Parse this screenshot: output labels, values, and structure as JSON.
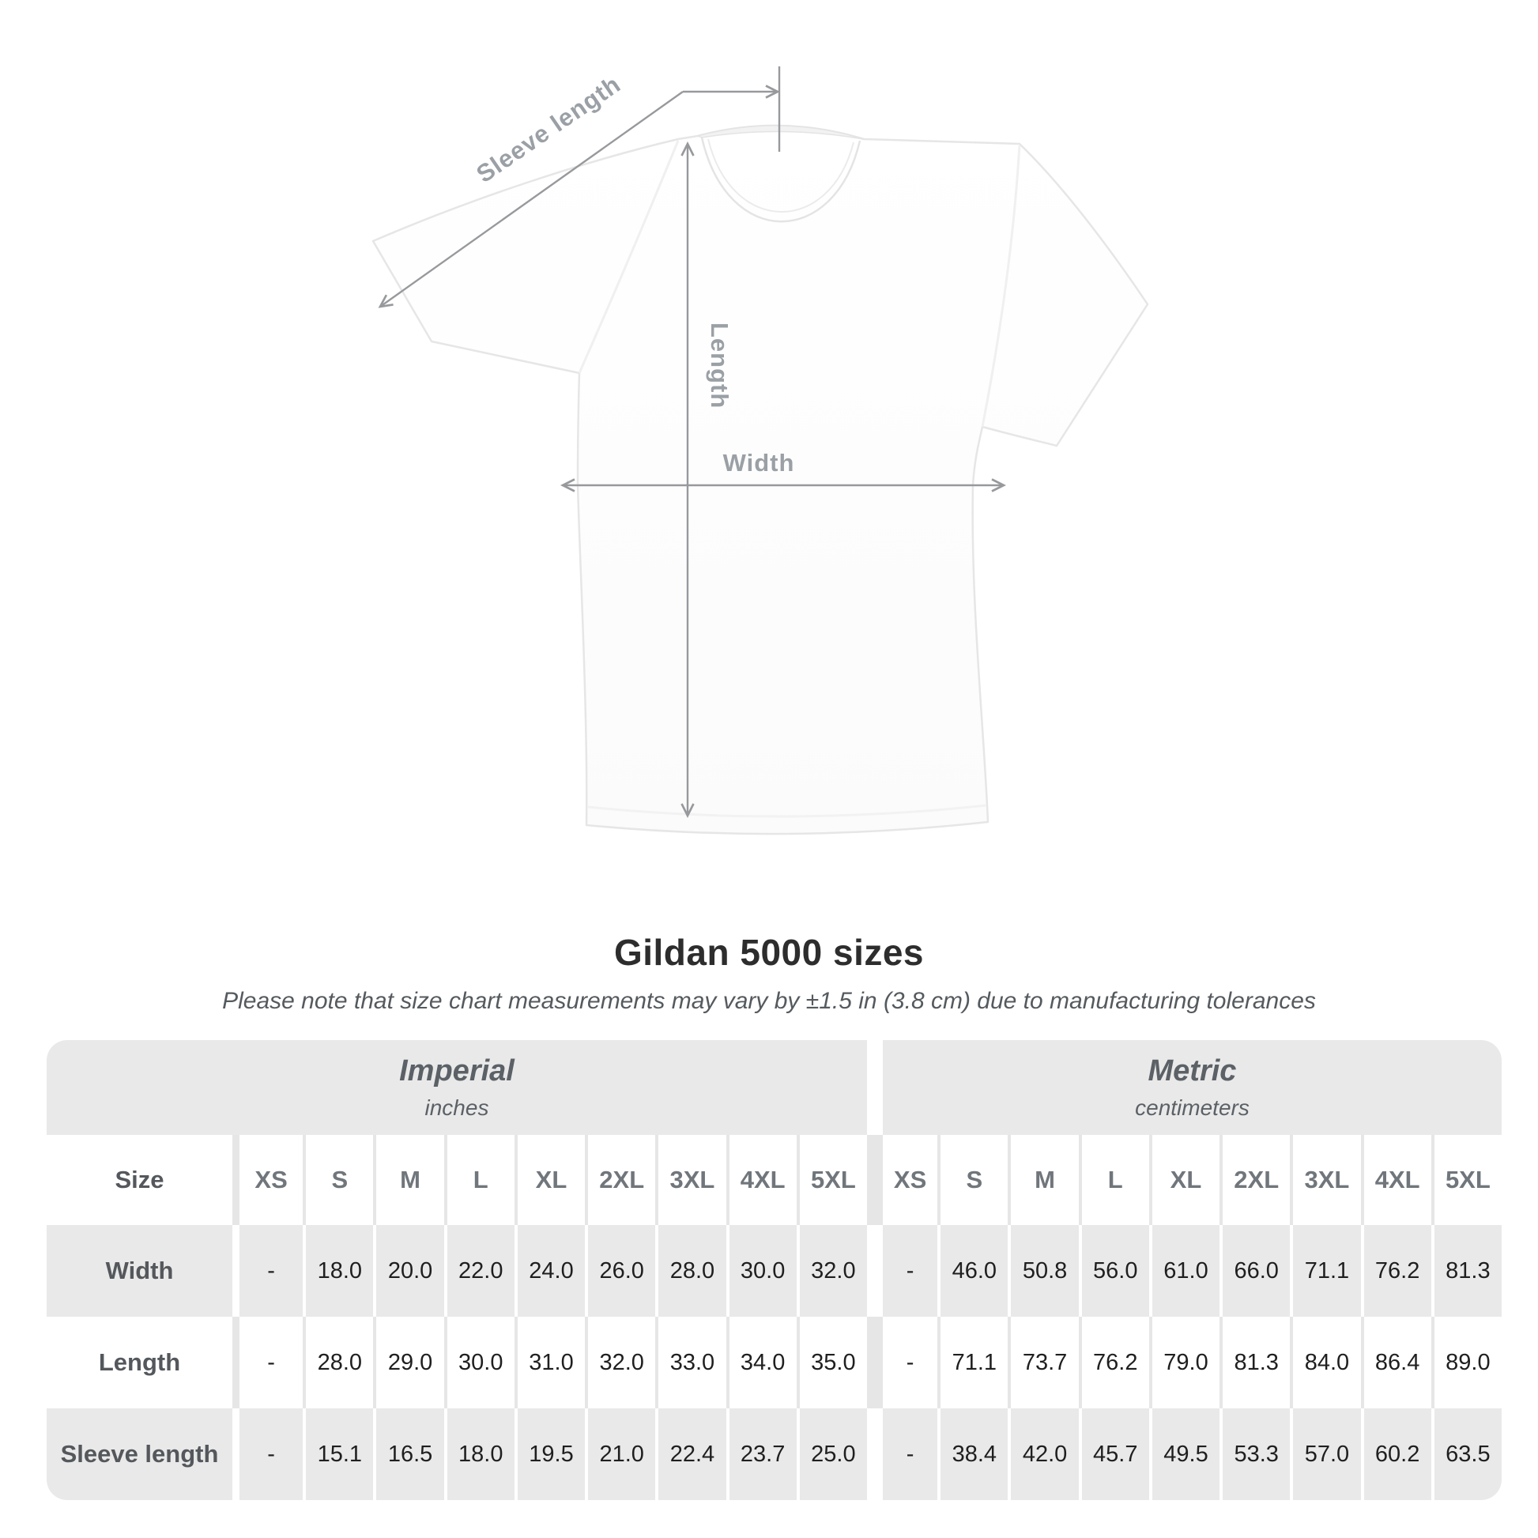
{
  "diagram": {
    "labels": {
      "sleeve_length": "Sleeve length",
      "length": "Length",
      "width": "Width"
    }
  },
  "header": {
    "title": "Gildan 5000 sizes",
    "subtitle": "Please note that size chart measurements may vary by ±1.5 in (3.8 cm) due to manufacturing tolerances"
  },
  "table": {
    "sections": [
      {
        "label": "Imperial",
        "unit": "inches"
      },
      {
        "label": "Metric",
        "unit": "centimeters"
      }
    ],
    "size_col_header": "Size",
    "size_headers": [
      "XS",
      "S",
      "M",
      "L",
      "XL",
      "2XL",
      "3XL",
      "4XL",
      "5XL"
    ],
    "rows": [
      {
        "label": "Width",
        "imperial": [
          "-",
          "18.0",
          "20.0",
          "22.0",
          "24.0",
          "26.0",
          "28.0",
          "30.0",
          "32.0"
        ],
        "metric": [
          "-",
          "46.0",
          "50.8",
          "56.0",
          "61.0",
          "66.0",
          "71.1",
          "76.2",
          "81.3"
        ]
      },
      {
        "label": "Length",
        "imperial": [
          "-",
          "28.0",
          "29.0",
          "30.0",
          "31.0",
          "32.0",
          "33.0",
          "34.0",
          "35.0"
        ],
        "metric": [
          "-",
          "71.1",
          "73.7",
          "76.2",
          "79.0",
          "81.3",
          "84.0",
          "86.4",
          "89.0"
        ]
      },
      {
        "label": "Sleeve length",
        "imperial": [
          "-",
          "15.1",
          "16.5",
          "18.0",
          "19.5",
          "21.0",
          "22.4",
          "23.7",
          "25.0"
        ],
        "metric": [
          "-",
          "38.4",
          "42.0",
          "45.7",
          "49.5",
          "53.3",
          "57.0",
          "60.2",
          "63.5"
        ]
      }
    ]
  },
  "colors": {
    "page_background": "#ffffff",
    "table_band_gray": "#e9e9e9",
    "row_gray": "#e9e9e9",
    "divider_on_white": "#e6e6e6",
    "divider_on_gray": "#ffffff",
    "dimension_line_gray": "#97999c",
    "dimension_label_gray": "#9aa0a5",
    "title_text": "#2d2d2d",
    "subtitle_text": "#555a5e",
    "section_header_text": "#5b6166",
    "value_text": "#1f1f1f",
    "shirt_outline": "#e6e6e6"
  }
}
